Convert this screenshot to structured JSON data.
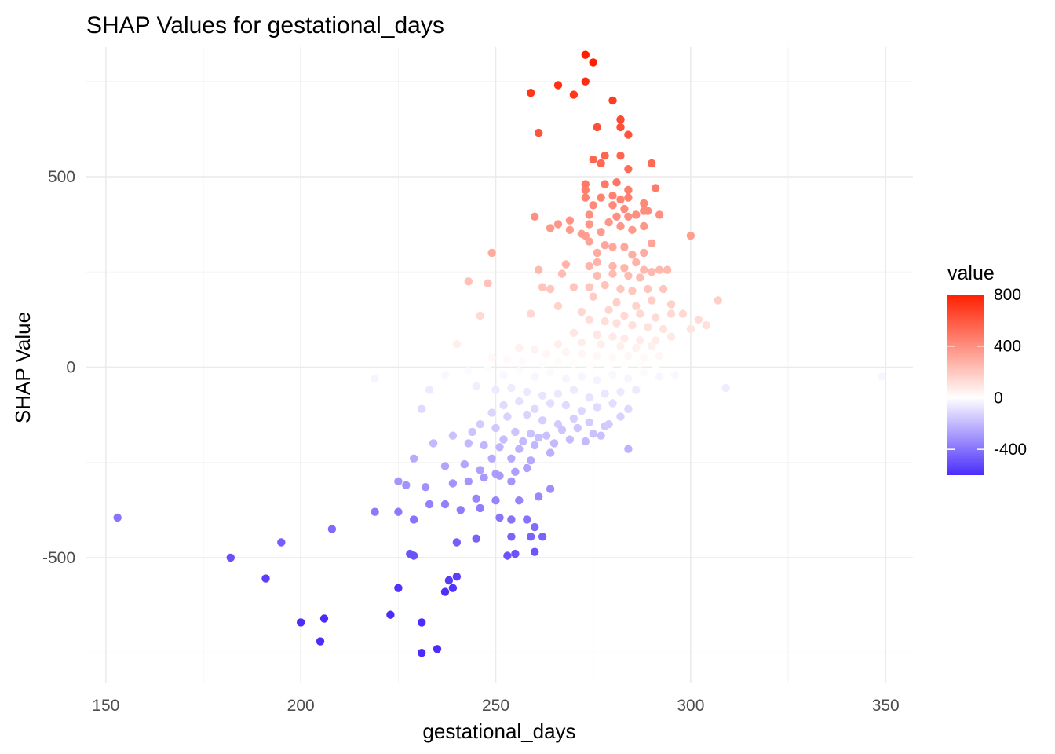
{
  "chart_data": {
    "type": "scatter",
    "title": "SHAP Values for gestational_days",
    "xlabel": "gestational_days",
    "ylabel": "SHAP Value",
    "xlim": [
      145,
      357
    ],
    "ylim": [
      -830,
      840
    ],
    "x_ticks": [
      150,
      200,
      250,
      300,
      350
    ],
    "y_ticks": [
      -500,
      0,
      500
    ],
    "x_tick_labels": [
      "150",
      "200",
      "250",
      "300",
      "350"
    ],
    "y_tick_labels": [
      "-500",
      "0",
      "500"
    ],
    "grid": true,
    "legend": {
      "title": "value",
      "placement": "right",
      "min": -600,
      "max": 800,
      "ticks": [
        800,
        400,
        0,
        -400
      ],
      "tick_labels": [
        "800",
        "400",
        "0",
        "-400"
      ]
    },
    "colors": {
      "low": "#4a2dfb",
      "mid": "#ffffff",
      "high": "#ff1f00"
    },
    "points": [
      [
        273,
        820
      ],
      [
        275,
        800
      ],
      [
        273,
        750
      ],
      [
        266,
        740
      ],
      [
        270,
        715
      ],
      [
        259,
        720
      ],
      [
        280,
        700
      ],
      [
        276,
        630
      ],
      [
        282,
        650
      ],
      [
        282,
        630
      ],
      [
        284,
        610
      ],
      [
        261,
        615
      ],
      [
        278,
        555
      ],
      [
        275,
        545
      ],
      [
        282,
        555
      ],
      [
        277,
        535
      ],
      [
        290,
        535
      ],
      [
        284,
        520
      ],
      [
        281,
        485
      ],
      [
        273,
        480
      ],
      [
        278,
        480
      ],
      [
        284,
        465
      ],
      [
        291,
        470
      ],
      [
        273,
        465
      ],
      [
        273,
        445
      ],
      [
        280,
        450
      ],
      [
        277,
        445
      ],
      [
        284,
        445
      ],
      [
        282,
        440
      ],
      [
        288,
        430
      ],
      [
        280,
        425
      ],
      [
        275,
        425
      ],
      [
        283,
        415
      ],
      [
        288,
        410
      ],
      [
        274,
        400
      ],
      [
        260,
        395
      ],
      [
        269,
        385
      ],
      [
        281,
        395
      ],
      [
        286,
        400
      ],
      [
        284,
        395
      ],
      [
        292,
        400
      ],
      [
        289,
        410
      ],
      [
        266,
        375
      ],
      [
        274,
        375
      ],
      [
        279,
        380
      ],
      [
        282,
        370
      ],
      [
        285,
        360
      ],
      [
        272,
        350
      ],
      [
        288,
        370
      ],
      [
        300,
        345
      ],
      [
        273,
        345
      ],
      [
        277,
        355
      ],
      [
        264,
        365
      ],
      [
        269,
        360
      ],
      [
        290,
        325
      ],
      [
        274,
        330
      ],
      [
        278,
        320
      ],
      [
        280,
        315
      ],
      [
        283,
        315
      ],
      [
        249,
        300
      ],
      [
        276,
        300
      ],
      [
        285,
        295
      ],
      [
        288,
        300
      ],
      [
        276,
        275
      ],
      [
        286,
        275
      ],
      [
        268,
        270
      ],
      [
        274,
        265
      ],
      [
        280,
        265
      ],
      [
        283,
        260
      ],
      [
        288,
        255
      ],
      [
        292,
        255
      ],
      [
        261,
        255
      ],
      [
        267,
        245
      ],
      [
        276,
        240
      ],
      [
        280,
        245
      ],
      [
        284,
        240
      ],
      [
        287,
        235
      ],
      [
        290,
        250
      ],
      [
        294,
        255
      ],
      [
        243,
        225
      ],
      [
        248,
        220
      ],
      [
        262,
        210
      ],
      [
        264,
        205
      ],
      [
        270,
        210
      ],
      [
        274,
        210
      ],
      [
        278,
        215
      ],
      [
        282,
        205
      ],
      [
        285,
        200
      ],
      [
        289,
        205
      ],
      [
        293,
        205
      ],
      [
        307,
        175
      ],
      [
        266,
        160
      ],
      [
        275,
        185
      ],
      [
        281,
        170
      ],
      [
        286,
        160
      ],
      [
        290,
        175
      ],
      [
        295,
        165
      ],
      [
        298,
        140
      ],
      [
        304,
        110
      ],
      [
        302,
        125
      ],
      [
        300,
        100
      ],
      [
        259,
        140
      ],
      [
        246,
        135
      ],
      [
        272,
        145
      ],
      [
        279,
        150
      ],
      [
        283,
        135
      ],
      [
        287,
        140
      ],
      [
        291,
        130
      ],
      [
        295,
        140
      ],
      [
        274,
        125
      ],
      [
        278,
        120
      ],
      [
        281,
        115
      ],
      [
        285,
        110
      ],
      [
        289,
        105
      ],
      [
        293,
        100
      ],
      [
        240,
        60
      ],
      [
        270,
        90
      ],
      [
        276,
        85
      ],
      [
        280,
        80
      ],
      [
        283,
        75
      ],
      [
        287,
        70
      ],
      [
        291,
        70
      ],
      [
        295,
        80
      ],
      [
        266,
        60
      ],
      [
        272,
        65
      ],
      [
        277,
        60
      ],
      [
        282,
        55
      ],
      [
        286,
        50
      ],
      [
        290,
        55
      ],
      [
        256,
        50
      ],
      [
        260,
        45
      ],
      [
        263,
        35
      ],
      [
        268,
        40
      ],
      [
        272,
        35
      ],
      [
        276,
        30
      ],
      [
        280,
        25
      ],
      [
        284,
        30
      ],
      [
        288,
        25
      ],
      [
        292,
        30
      ],
      [
        249,
        25
      ],
      [
        253,
        20
      ],
      [
        257,
        15
      ],
      [
        262,
        10
      ],
      [
        266,
        15
      ],
      [
        270,
        10
      ],
      [
        274,
        5
      ],
      [
        279,
        0
      ],
      [
        283,
        5
      ],
      [
        287,
        10
      ],
      [
        291,
        0
      ],
      [
        296,
        -20
      ],
      [
        219,
        -30
      ],
      [
        237,
        -20
      ],
      [
        243,
        -10
      ],
      [
        248,
        -5
      ],
      [
        252,
        -20
      ],
      [
        256,
        -10
      ],
      [
        260,
        -25
      ],
      [
        264,
        -15
      ],
      [
        268,
        -30
      ],
      [
        272,
        -25
      ],
      [
        276,
        -35
      ],
      [
        280,
        -20
      ],
      [
        284,
        -30
      ],
      [
        288,
        -15
      ],
      [
        292,
        -25
      ],
      [
        309,
        -55
      ],
      [
        349,
        -25
      ],
      [
        233,
        -60
      ],
      [
        245,
        -50
      ],
      [
        250,
        -60
      ],
      [
        254,
        -55
      ],
      [
        258,
        -65
      ],
      [
        262,
        -75
      ],
      [
        266,
        -70
      ],
      [
        270,
        -60
      ],
      [
        274,
        -80
      ],
      [
        278,
        -70
      ],
      [
        282,
        -65
      ],
      [
        286,
        -60
      ],
      [
        252,
        -100
      ],
      [
        256,
        -90
      ],
      [
        260,
        -110
      ],
      [
        264,
        -95
      ],
      [
        268,
        -100
      ],
      [
        272,
        -115
      ],
      [
        276,
        -105
      ],
      [
        280,
        -95
      ],
      [
        284,
        -110
      ],
      [
        231,
        -110
      ],
      [
        249,
        -120
      ],
      [
        253,
        -130
      ],
      [
        258,
        -125
      ],
      [
        262,
        -140
      ],
      [
        266,
        -150
      ],
      [
        270,
        -135
      ],
      [
        274,
        -145
      ],
      [
        278,
        -155
      ],
      [
        282,
        -130
      ],
      [
        246,
        -150
      ],
      [
        250,
        -160
      ],
      [
        255,
        -170
      ],
      [
        259,
        -175
      ],
      [
        263,
        -180
      ],
      [
        267,
        -165
      ],
      [
        271,
        -160
      ],
      [
        275,
        -175
      ],
      [
        279,
        -150
      ],
      [
        244,
        -170
      ],
      [
        239,
        -180
      ],
      [
        252,
        -190
      ],
      [
        257,
        -195
      ],
      [
        261,
        -185
      ],
      [
        265,
        -200
      ],
      [
        269,
        -190
      ],
      [
        273,
        -195
      ],
      [
        277,
        -180
      ],
      [
        243,
        -200
      ],
      [
        247,
        -205
      ],
      [
        251,
        -210
      ],
      [
        256,
        -215
      ],
      [
        260,
        -205
      ],
      [
        264,
        -225
      ],
      [
        234,
        -200
      ],
      [
        254,
        -240
      ],
      [
        284,
        -215
      ],
      [
        249,
        -240
      ],
      [
        229,
        -240
      ],
      [
        237,
        -260
      ],
      [
        242,
        -255
      ],
      [
        246,
        -270
      ],
      [
        250,
        -280
      ],
      [
        255,
        -275
      ],
      [
        259,
        -245
      ],
      [
        254,
        -300
      ],
      [
        258,
        -265
      ],
      [
        225,
        -300
      ],
      [
        227,
        -310
      ],
      [
        232,
        -315
      ],
      [
        239,
        -305
      ],
      [
        243,
        -300
      ],
      [
        247,
        -290
      ],
      [
        251,
        -285
      ],
      [
        237,
        -360
      ],
      [
        233,
        -360
      ],
      [
        245,
        -345
      ],
      [
        250,
        -350
      ],
      [
        256,
        -350
      ],
      [
        261,
        -340
      ],
      [
        264,
        -320
      ],
      [
        219,
        -380
      ],
      [
        225,
        -380
      ],
      [
        229,
        -400
      ],
      [
        241,
        -375
      ],
      [
        246,
        -370
      ],
      [
        251,
        -395
      ],
      [
        254,
        -400
      ],
      [
        258,
        -400
      ],
      [
        260,
        -420
      ],
      [
        153,
        -395
      ],
      [
        208,
        -425
      ],
      [
        195,
        -460
      ],
      [
        245,
        -450
      ],
      [
        254,
        -445
      ],
      [
        259,
        -445
      ],
      [
        262,
        -445
      ],
      [
        240,
        -460
      ],
      [
        228,
        -490
      ],
      [
        229,
        -495
      ],
      [
        255,
        -490
      ],
      [
        253,
        -495
      ],
      [
        260,
        -485
      ],
      [
        182,
        -500
      ],
      [
        191,
        -555
      ],
      [
        225,
        -580
      ],
      [
        238,
        -560
      ],
      [
        239,
        -580
      ],
      [
        240,
        -550
      ],
      [
        237,
        -590
      ],
      [
        200,
        -670
      ],
      [
        206,
        -660
      ],
      [
        223,
        -650
      ],
      [
        231,
        -670
      ],
      [
        205,
        -720
      ],
      [
        235,
        -740
      ],
      [
        231,
        -750
      ]
    ]
  }
}
